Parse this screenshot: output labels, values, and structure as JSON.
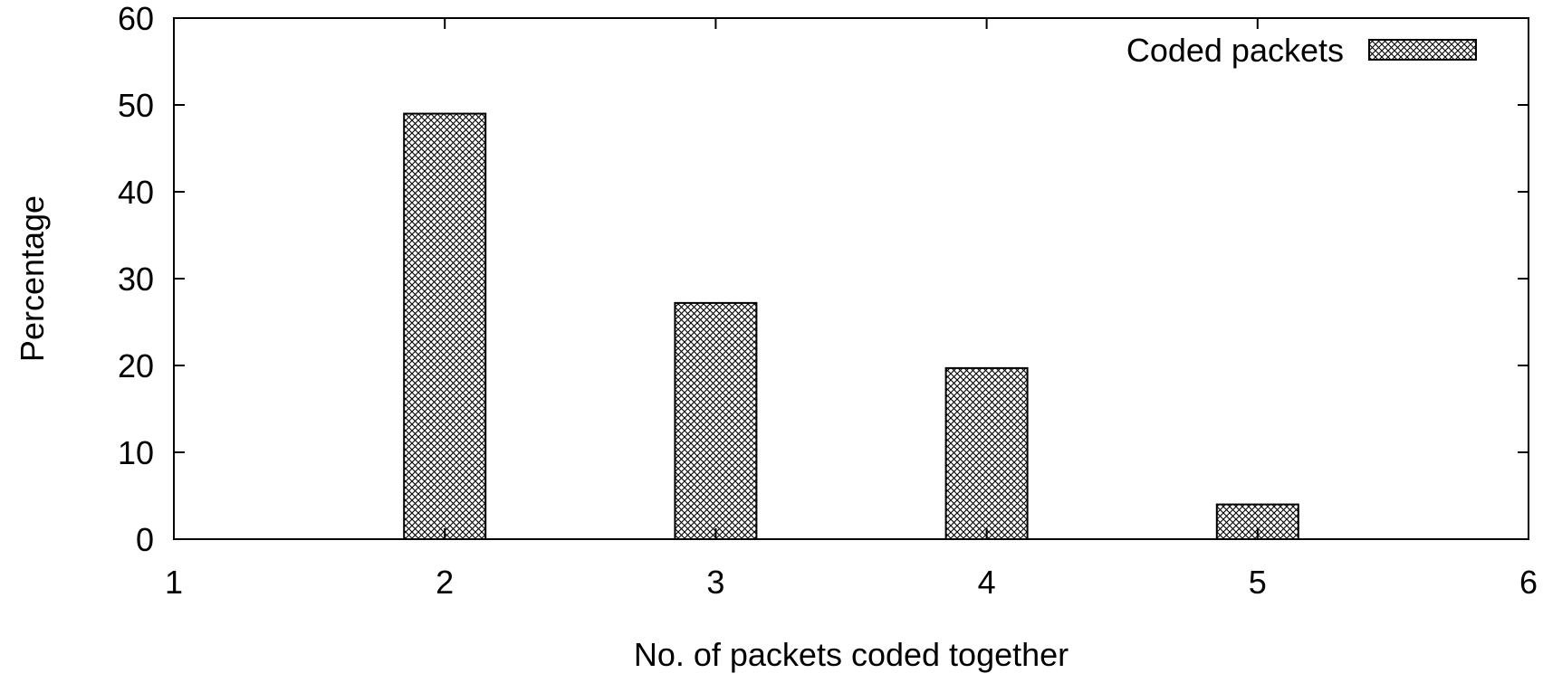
{
  "chart_data": {
    "type": "bar",
    "x": [
      2,
      3,
      4,
      5
    ],
    "series": [
      {
        "name": "Coded packets",
        "values": [
          49,
          27.2,
          19.7,
          4
        ]
      }
    ],
    "xlabel": "No. of packets coded together",
    "ylabel": "Percentage",
    "xlim": [
      1,
      6
    ],
    "ylim": [
      0,
      60
    ],
    "xticks": [
      1,
      2,
      3,
      4,
      5,
      6
    ],
    "yticks": [
      0,
      10,
      20,
      30,
      40,
      50,
      60
    ],
    "grid": false,
    "legend_position": "top-right",
    "bar_pattern": "crosshatch"
  },
  "colors": {
    "bar_fill_pattern": "#000000",
    "bar_background": "#ffffff",
    "axis": "#000000"
  }
}
